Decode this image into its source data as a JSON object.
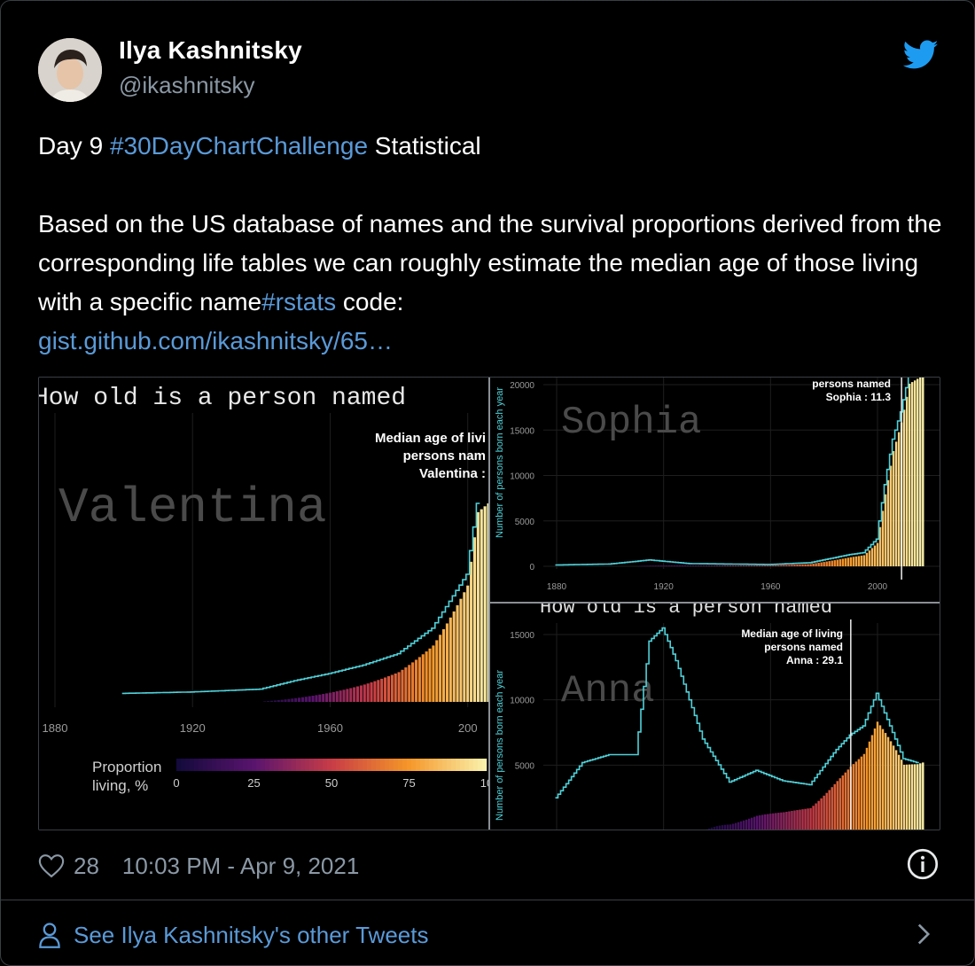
{
  "author": {
    "name": "Ilya Kashnitsky",
    "handle": "@ikashnitsky"
  },
  "tweet": {
    "line1_prefix": "Day 9 ",
    "line1_hashtag": "#30DayChartChallenge",
    "line1_suffix": " Statistical",
    "body": "Based on the US database of names and the survival proportions derived from the corresponding life tables we can roughly estimate the median age of those living with a specific name",
    "hashtag2": "#rstats",
    "after_hashtag2": " code:",
    "link": "gist.github.com/ikashnitsky/65…"
  },
  "footer": {
    "likes": "28",
    "timestamp": "10:03 PM - Apr 9, 2021",
    "other_tweets": "See Ilya Kashnitsky's other Tweets"
  },
  "colors": {
    "link": "#5a9ad8",
    "muted": "#8b98a5",
    "curve": "#4fd1d9",
    "twitter": "#1d9bf0"
  },
  "icons": [
    "twitter-logo-icon",
    "heart-icon",
    "info-icon",
    "person-icon",
    "chevron-right-icon"
  ],
  "chart_data": [
    {
      "type": "bar",
      "name_label": "Valentina",
      "title_fragment": "How old is a person named",
      "annotation": [
        "Median age of livi",
        "persons nam",
        "Valentina : "
      ],
      "x_ticks": [
        "1880",
        "1920",
        "1960",
        "200"
      ],
      "legend_title": [
        "Proportion",
        "living, %"
      ],
      "legend_ticks": [
        "0",
        "25",
        "50",
        "75",
        "10"
      ],
      "x": [
        1900,
        1920,
        1940,
        1950,
        1960,
        1970,
        1980,
        1990,
        2000,
        2003
      ],
      "values": [
        60,
        70,
        90,
        150,
        200,
        260,
        340,
        520,
        900,
        1400
      ]
    },
    {
      "type": "bar",
      "name_label": "Sophia",
      "annotation": [
        "persons named",
        "Sophia : 11.3"
      ],
      "ylabel": "Number of persons born each year",
      "y_ticks": [
        "20000",
        "15000",
        "10000",
        "5000",
        "0"
      ],
      "x_ticks": [
        "1880",
        "1920",
        "1960",
        "2000"
      ],
      "ylim": [
        0,
        20000
      ],
      "median_year": 2009,
      "x": [
        1880,
        1900,
        1915,
        1930,
        1960,
        1975,
        1990,
        1995,
        2000,
        2003,
        2006,
        2009,
        2012,
        2015
      ],
      "values": [
        150,
        250,
        700,
        300,
        200,
        400,
        1300,
        1500,
        3000,
        9000,
        14000,
        17000,
        21000,
        21000
      ]
    },
    {
      "type": "bar",
      "name_label": "Anna",
      "title_fragment": "How old is a person named",
      "annotation": [
        "Median age of living",
        "persons named",
        "Anna : 29.1"
      ],
      "ylabel": "Number of persons born each year",
      "y_ticks": [
        "15000",
        "10000",
        "5000"
      ],
      "ylim": [
        0,
        16000
      ],
      "median_year": 1990,
      "x": [
        1880,
        1890,
        1900,
        1910,
        1915,
        1920,
        1925,
        1935,
        1945,
        1955,
        1965,
        1975,
        1985,
        1990,
        1995,
        2000,
        2005,
        2010,
        2015
      ],
      "values": [
        2500,
        5200,
        5800,
        5800,
        14500,
        15500,
        13000,
        7000,
        3700,
        4600,
        3800,
        3500,
        6200,
        7300,
        8000,
        10500,
        8000,
        5500,
        5200
      ]
    }
  ]
}
